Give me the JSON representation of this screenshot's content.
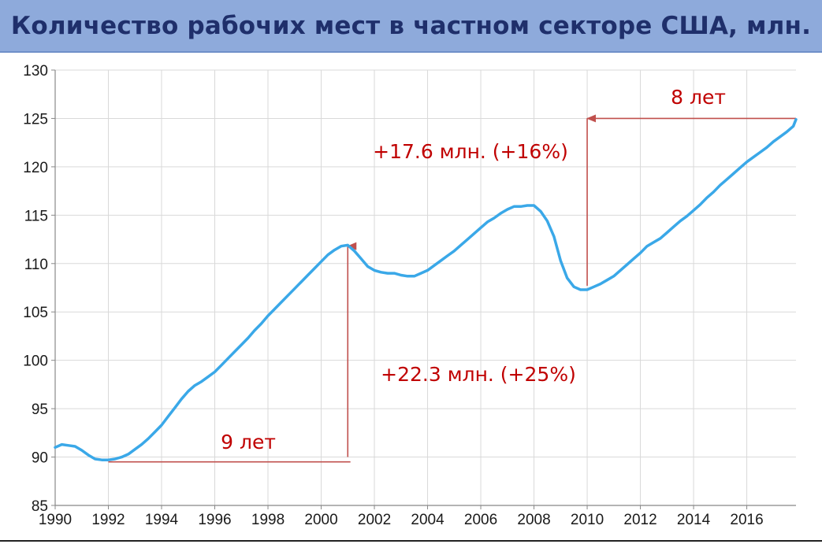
{
  "chart_data": {
    "type": "line",
    "title": "Количество рабочих мест в частном секторе США, млн.",
    "xlabel": "",
    "ylabel": "",
    "xlim": [
      1990,
      2017.85
    ],
    "ylim": [
      85,
      130
    ],
    "x_ticks": [
      "1990",
      "1992",
      "1994",
      "1996",
      "1998",
      "2000",
      "2002",
      "2004",
      "2006",
      "2008",
      "2010",
      "2012",
      "2014",
      "2016"
    ],
    "y_ticks": [
      "85",
      "90",
      "95",
      "100",
      "105",
      "110",
      "115",
      "120",
      "125",
      "130"
    ],
    "grid": true,
    "series": [
      {
        "color": "#3aa8e8",
        "x": [
          1990.0,
          1990.25,
          1990.5,
          1990.75,
          1991.0,
          1991.25,
          1991.5,
          1991.75,
          1992.0,
          1992.25,
          1992.5,
          1992.75,
          1993.0,
          1993.25,
          1993.5,
          1993.75,
          1994.0,
          1994.25,
          1994.5,
          1994.75,
          1995.0,
          1995.25,
          1995.5,
          1995.75,
          1996.0,
          1996.25,
          1996.5,
          1996.75,
          1997.0,
          1997.25,
          1997.5,
          1997.75,
          1998.0,
          1998.25,
          1998.5,
          1998.75,
          1999.0,
          1999.25,
          1999.5,
          1999.75,
          2000.0,
          2000.25,
          2000.5,
          2000.75,
          2001.0,
          2001.25,
          2001.5,
          2001.75,
          2002.0,
          2002.25,
          2002.5,
          2002.75,
          2003.0,
          2003.25,
          2003.5,
          2003.75,
          2004.0,
          2004.25,
          2004.5,
          2004.75,
          2005.0,
          2005.25,
          2005.5,
          2005.75,
          2006.0,
          2006.25,
          2006.5,
          2006.75,
          2007.0,
          2007.25,
          2007.5,
          2007.75,
          2008.0,
          2008.25,
          2008.5,
          2008.75,
          2009.0,
          2009.25,
          2009.5,
          2009.75,
          2010.0,
          2010.25,
          2010.5,
          2010.75,
          2011.0,
          2011.25,
          2011.5,
          2011.75,
          2012.0,
          2012.25,
          2012.5,
          2012.75,
          2013.0,
          2013.25,
          2013.5,
          2013.75,
          2014.0,
          2014.25,
          2014.5,
          2014.75,
          2015.0,
          2015.25,
          2015.5,
          2015.75,
          2016.0,
          2016.25,
          2016.5,
          2016.75,
          2017.0,
          2017.25,
          2017.5,
          2017.75,
          2017.85
        ],
        "values": [
          91.0,
          91.3,
          91.2,
          91.1,
          90.7,
          90.2,
          89.8,
          89.7,
          89.7,
          89.8,
          90.0,
          90.3,
          90.8,
          91.3,
          91.9,
          92.6,
          93.3,
          94.2,
          95.1,
          96.0,
          96.8,
          97.4,
          97.8,
          98.3,
          98.8,
          99.5,
          100.2,
          100.9,
          101.6,
          102.3,
          103.1,
          103.8,
          104.6,
          105.3,
          106.0,
          106.7,
          107.4,
          108.1,
          108.8,
          109.5,
          110.2,
          110.9,
          111.4,
          111.8,
          111.9,
          111.3,
          110.5,
          109.7,
          109.3,
          109.1,
          109.0,
          109.0,
          108.8,
          108.7,
          108.7,
          109.0,
          109.3,
          109.8,
          110.3,
          110.8,
          111.3,
          111.9,
          112.5,
          113.1,
          113.7,
          114.3,
          114.7,
          115.2,
          115.6,
          115.9,
          115.9,
          116.0,
          116.0,
          115.4,
          114.4,
          112.8,
          110.3,
          108.5,
          107.6,
          107.3,
          107.3,
          107.6,
          107.9,
          108.3,
          108.7,
          109.3,
          109.9,
          110.5,
          111.1,
          111.8,
          112.2,
          112.6,
          113.2,
          113.8,
          114.4,
          114.9,
          115.5,
          116.1,
          116.8,
          117.4,
          118.1,
          118.7,
          119.3,
          119.9,
          120.5,
          121.0,
          121.5,
          122.0,
          122.6,
          123.1,
          123.6,
          124.2,
          124.9
        ]
      }
    ],
    "annotations": [
      {
        "text": "9 лет",
        "color": "#c00000"
      },
      {
        "text": "+22.3 млн. (+25%)",
        "color": "#c00000"
      },
      {
        "text": "+17.6 млн. (+16%)",
        "color": "#c00000"
      },
      {
        "text": "8 лет",
        "color": "#c00000"
      }
    ],
    "reference_lines": [
      {
        "from": [
          1992.0,
          89.5
        ],
        "to": [
          2001.1,
          89.5
        ],
        "arrow": false
      },
      {
        "from": [
          2001.0,
          90.0
        ],
        "to": [
          2001.0,
          111.8
        ],
        "arrow": true
      },
      {
        "from": [
          2010.0,
          107.7
        ],
        "to": [
          2010.0,
          125.0
        ],
        "arrow": true
      },
      {
        "from": [
          2010.0,
          125.0
        ],
        "to": [
          2017.85,
          125.0
        ],
        "arrow": false
      }
    ]
  }
}
